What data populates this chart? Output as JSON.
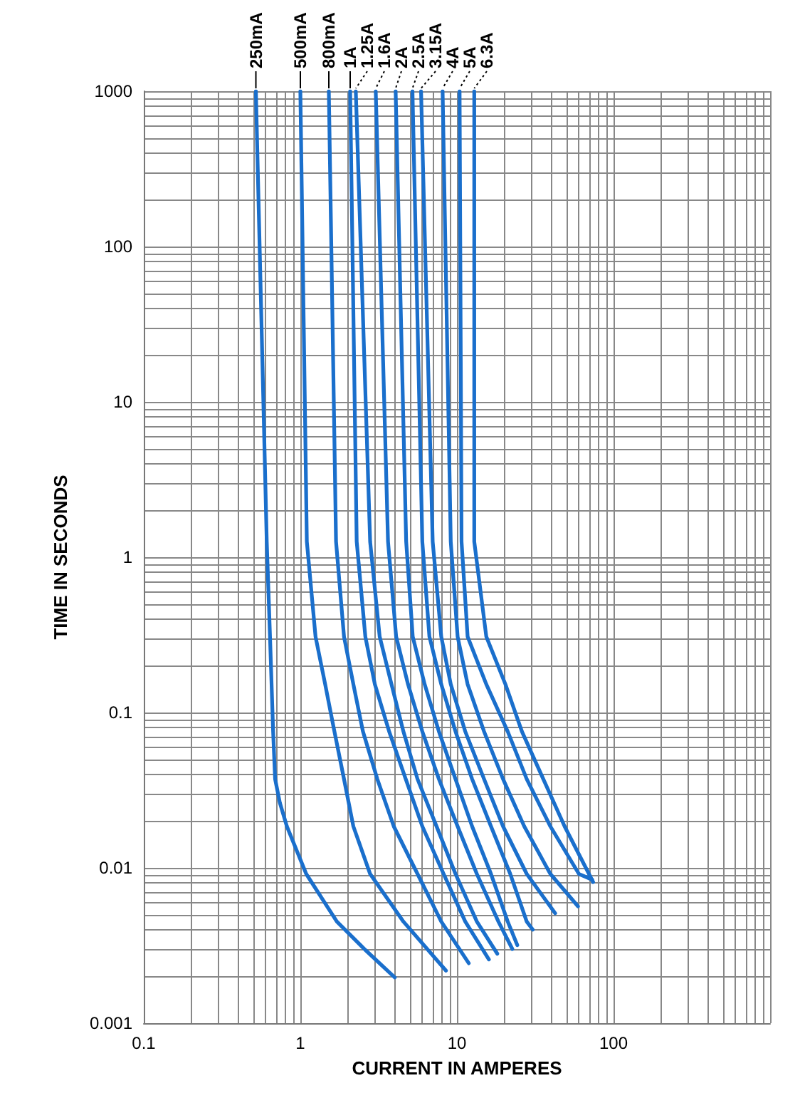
{
  "chart_data": {
    "type": "line",
    "xlabel": "CURRENT IN AMPERES",
    "ylabel": "TIME IN SECONDS",
    "log": "xy",
    "grid": true,
    "marker": "none",
    "xlim": [
      0.1,
      1000
    ],
    "xticks": [
      0.1,
      1,
      10,
      100
    ],
    "ylim": [
      0.001,
      1000
    ],
    "yticks": [
      0.001,
      0.01,
      0.1,
      1,
      10,
      100,
      1000
    ],
    "series": [
      {
        "name": "250mA",
        "color": "#1a6fcc",
        "x": [
          0.52,
          0.61,
          0.64,
          0.67,
          0.69,
          0.74,
          0.82,
          1.09,
          1.71,
          2.6,
          4.01
        ],
        "values": [
          1000,
          1.26,
          0.308,
          0.0755,
          0.0373,
          0.0262,
          0.0185,
          0.00914,
          0.00451,
          0.00296,
          0.00197
        ]
      },
      {
        "name": "500mA",
        "color": "#1a6fcc",
        "x": [
          1.0,
          1.1,
          1.25,
          1.44,
          1.65,
          1.9,
          2.18,
          2.79,
          4.55,
          8.51
        ],
        "values": [
          1000,
          1.26,
          0.308,
          0.152,
          0.0755,
          0.0373,
          0.0185,
          0.00914,
          0.00451,
          0.00218
        ]
      },
      {
        "name": "800mA",
        "color": "#1a6fcc",
        "x": [
          1.52,
          1.69,
          1.9,
          2.18,
          2.51,
          3.1,
          3.95,
          5.6,
          7.94,
          11.9
        ],
        "values": [
          1000,
          1.26,
          0.308,
          0.152,
          0.0755,
          0.0373,
          0.0185,
          0.00914,
          0.00451,
          0.00243
        ]
      },
      {
        "name": "1A",
        "color": "#1a6fcc",
        "x": [
          2.08,
          2.29,
          2.6,
          2.99,
          3.69,
          4.71,
          6.01,
          8.22,
          11.3,
          16.0
        ],
        "values": [
          1000,
          1.26,
          0.308,
          0.152,
          0.0755,
          0.0373,
          0.0185,
          0.00914,
          0.00451,
          0.00257
        ]
      },
      {
        "name": "1.25A",
        "color": "#1a6fcc",
        "x": [
          2.26,
          2.79,
          3.21,
          3.82,
          4.55,
          5.6,
          7.41,
          9.79,
          13.4,
          18.1
        ],
        "values": [
          1000,
          1.26,
          0.308,
          0.152,
          0.0755,
          0.0373,
          0.0185,
          0.00914,
          0.00451,
          0.0028
        ]
      },
      {
        "name": "1.6A",
        "color": "#1a6fcc",
        "x": [
          3.03,
          3.63,
          4.09,
          4.87,
          6.01,
          7.67,
          10.1,
          13.4,
          18.4,
          22.6
        ],
        "values": [
          1000,
          1.26,
          0.308,
          0.152,
          0.0755,
          0.0373,
          0.0185,
          0.00914,
          0.00451,
          0.003
        ]
      },
      {
        "name": "2A",
        "color": "#1a6fcc",
        "x": [
          4.06,
          4.74,
          5.22,
          6.22,
          7.67,
          9.79,
          12.5,
          16.5,
          21.1,
          24.3
        ],
        "values": [
          1000,
          1.26,
          0.308,
          0.152,
          0.0755,
          0.0373,
          0.0185,
          0.00914,
          0.00451,
          0.00318
        ]
      },
      {
        "name": "2.5A",
        "color": "#1a6fcc",
        "x": [
          5.2,
          6.01,
          6.67,
          7.94,
          9.79,
          12.5,
          16.5,
          21.9,
          27.9,
          30.5
        ],
        "values": [
          1000,
          1.26,
          0.308,
          0.152,
          0.0755,
          0.0373,
          0.0185,
          0.00914,
          0.00451,
          0.004
        ]
      },
      {
        "name": "3.15A",
        "color": "#1a6fcc",
        "x": [
          5.9,
          7.0,
          7.94,
          9.13,
          11.3,
          14.9,
          19.7,
          27.9,
          42.4
        ],
        "values": [
          1000,
          1.26,
          0.308,
          0.152,
          0.0755,
          0.0373,
          0.0185,
          0.00914,
          0.0051
        ]
      },
      {
        "name": "4A",
        "color": "#1a6fcc",
        "x": [
          8.1,
          9.13,
          10.1,
          11.7,
          14.9,
          19.7,
          26.9,
          39.5,
          59.3
        ],
        "values": [
          1000,
          1.26,
          0.308,
          0.152,
          0.0755,
          0.0373,
          0.0185,
          0.00914,
          0.00565
        ]
      },
      {
        "name": "5A",
        "color": "#1a6fcc",
        "x": [
          10.4,
          10.7,
          11.7,
          15.4,
          21.1,
          27.9,
          39.5,
          60.1,
          73.0
        ],
        "values": [
          1000,
          1.26,
          0.308,
          0.152,
          0.0755,
          0.0373,
          0.0185,
          0.00914,
          0.0084
        ]
      },
      {
        "name": "6.3A",
        "color": "#1a6fcc",
        "x": [
          12.9,
          12.9,
          15.4,
          20.4,
          26.0,
          35.6,
          48.7,
          74.1
        ],
        "values": [
          1000,
          1.26,
          0.308,
          0.152,
          0.0755,
          0.0373,
          0.0185,
          0.0081
        ]
      }
    ]
  }
}
